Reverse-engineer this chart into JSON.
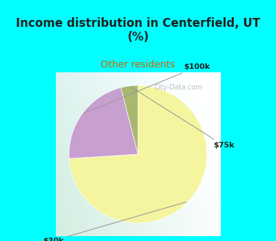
{
  "title": "Income distribution in Centerfield, UT\n(%)",
  "subtitle": "Other residents",
  "title_color": "#222222",
  "subtitle_color": "#cc6600",
  "title_bg_color": "#00FFFF",
  "slices": [
    {
      "label": "$30k",
      "value": 74,
      "color": "#f5f5a0"
    },
    {
      "label": "$100k",
      "value": 22,
      "color": "#c8a0d0"
    },
    {
      "label": "$75k",
      "value": 4,
      "color": "#a8b870"
    }
  ],
  "figsize": [
    4.0,
    3.5
  ],
  "dpi": 100
}
